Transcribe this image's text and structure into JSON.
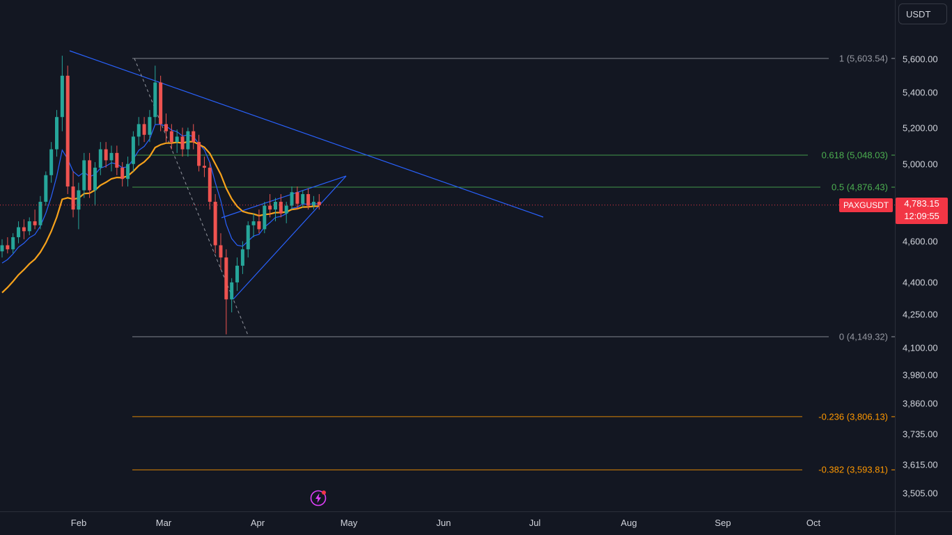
{
  "colors": {
    "background": "#131722",
    "up": "#26a69a",
    "down": "#ef5350",
    "ma_fast": "#2962ff",
    "ma_slow": "#f7a21b",
    "trendline": "#2962ff",
    "fib_neutral": "#9598a1",
    "fib_green": "#4caf50",
    "fib_orange": "#ff9800",
    "price_tag": "#f23645"
  },
  "currency_button": {
    "label": "USDT"
  },
  "price_tag": {
    "symbol": "PAXGUSDT",
    "price": "4,783.15",
    "countdown": "12:09:55"
  },
  "chart_data": {
    "type": "candlestick",
    "symbol": "PAXGUSDT",
    "x_axis": {
      "type": "date",
      "labels": [
        "Feb",
        "Mar",
        "Apr",
        "May",
        "Jun",
        "Jul",
        "Aug",
        "Sep",
        "Oct"
      ]
    },
    "y_axis": {
      "scale": "log",
      "tick_labels": [
        "5,600.00",
        "5,400.00",
        "5,200.00",
        "5,000.00",
        "4,600.00",
        "4,400.00",
        "4,250.00",
        "4,100.00",
        "3,980.00",
        "3,860.00",
        "3,735.00",
        "3,615.00",
        "3,505.00"
      ],
      "tick_values": [
        5600,
        5400,
        5200,
        5000,
        4600,
        4400,
        4250,
        4100,
        3980,
        3860,
        3735,
        3615,
        3505
      ]
    },
    "last_price": 4783.15,
    "fibonacci_levels": [
      {
        "ratio": 1,
        "price": 5603.54,
        "label": "1 (5,603.54)",
        "color": "#9598a1"
      },
      {
        "ratio": 0.618,
        "price": 5048.03,
        "label": "0.618 (5,048.03)",
        "color": "#4caf50"
      },
      {
        "ratio": 0.5,
        "price": 4876.43,
        "label": "0.5 (4,876.43)",
        "color": "#4caf50"
      },
      {
        "ratio": 0,
        "price": 4149.32,
        "label": "0 (4,149.32)",
        "color": "#9598a1"
      },
      {
        "ratio": -0.236,
        "price": 3806.13,
        "label": "-0.236 (3,806.13)",
        "color": "#ff9800"
      },
      {
        "ratio": -0.382,
        "price": 3593.81,
        "label": "-0.382 (3,593.81)",
        "color": "#ff9800"
      }
    ],
    "candles": [
      [
        4550,
        4610,
        4520,
        4580
      ],
      [
        4580,
        4620,
        4540,
        4560
      ],
      [
        4560,
        4640,
        4540,
        4620
      ],
      [
        4620,
        4700,
        4590,
        4670
      ],
      [
        4670,
        4710,
        4610,
        4650
      ],
      [
        4650,
        4720,
        4630,
        4700
      ],
      [
        4700,
        4760,
        4660,
        4680
      ],
      [
        4680,
        4830,
        4660,
        4800
      ],
      [
        4800,
        4960,
        4780,
        4940
      ],
      [
        4940,
        5120,
        4900,
        5080
      ],
      [
        5080,
        5300,
        5040,
        5260
      ],
      [
        5260,
        5620,
        5180,
        5500
      ],
      [
        5500,
        5560,
        4840,
        4880
      ],
      [
        4880,
        4960,
        4720,
        4760
      ],
      [
        4760,
        4900,
        4660,
        4860
      ],
      [
        4860,
        5060,
        4820,
        5020
      ],
      [
        5020,
        5060,
        4820,
        4860
      ],
      [
        4860,
        5010,
        4780,
        4980
      ],
      [
        4980,
        5120,
        4940,
        5080
      ],
      [
        5080,
        5120,
        4980,
        5020
      ],
      [
        5020,
        5100,
        4960,
        5060
      ],
      [
        5060,
        5100,
        4940,
        4980
      ],
      [
        4980,
        5010,
        4880,
        4920
      ],
      [
        4920,
        5040,
        4880,
        5000
      ],
      [
        5000,
        5180,
        4960,
        5150
      ],
      [
        5150,
        5260,
        5100,
        5220
      ],
      [
        5220,
        5260,
        5120,
        5160
      ],
      [
        5160,
        5300,
        5120,
        5260
      ],
      [
        5260,
        5560,
        5220,
        5460
      ],
      [
        5460,
        5500,
        5180,
        5220
      ],
      [
        5220,
        5280,
        5120,
        5180
      ],
      [
        5180,
        5220,
        5080,
        5120
      ],
      [
        5120,
        5190,
        5060,
        5150
      ],
      [
        5150,
        5200,
        5040,
        5080
      ],
      [
        5080,
        5200,
        5040,
        5180
      ],
      [
        5180,
        5220,
        5080,
        5120
      ],
      [
        5120,
        5160,
        4960,
        4990
      ],
      [
        4990,
        5040,
        4930,
        4980
      ],
      [
        4980,
        5010,
        4760,
        4800
      ],
      [
        4800,
        4840,
        4540,
        4580
      ],
      [
        4580,
        4640,
        4460,
        4520
      ],
      [
        4520,
        4560,
        4160,
        4320
      ],
      [
        4320,
        4420,
        4260,
        4400
      ],
      [
        4400,
        4520,
        4360,
        4480
      ],
      [
        4480,
        4600,
        4440,
        4560
      ],
      [
        4560,
        4700,
        4520,
        4680
      ],
      [
        4680,
        4740,
        4620,
        4700
      ],
      [
        4700,
        4760,
        4640,
        4660
      ],
      [
        4660,
        4800,
        4640,
        4780
      ],
      [
        4780,
        4840,
        4720,
        4760
      ],
      [
        4760,
        4820,
        4700,
        4800
      ],
      [
        4800,
        4840,
        4720,
        4740
      ],
      [
        4740,
        4800,
        4690,
        4780
      ],
      [
        4780,
        4880,
        4760,
        4850
      ],
      [
        4850,
        4880,
        4760,
        4790
      ],
      [
        4790,
        4860,
        4770,
        4840
      ],
      [
        4840,
        4870,
        4760,
        4780
      ],
      [
        4780,
        4830,
        4760,
        4800
      ],
      [
        4800,
        4840,
        4760,
        4783.15
      ]
    ]
  }
}
